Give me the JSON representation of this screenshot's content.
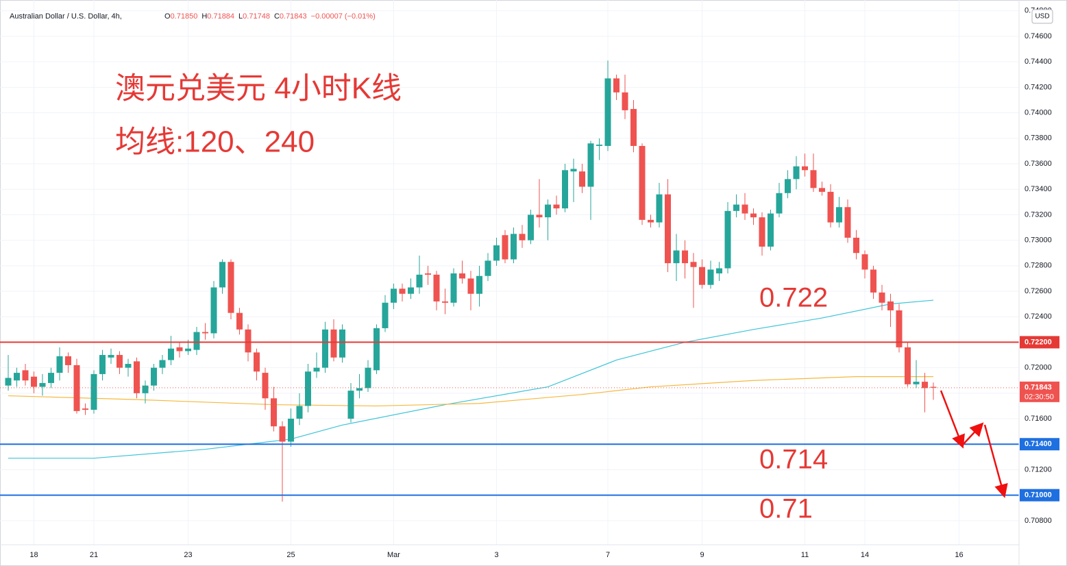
{
  "header": {
    "symbol": "Australian Dollar / U.S. Dollar, 4h,",
    "ohlc_keys": [
      "O",
      "H",
      "L",
      "C"
    ],
    "ohlc_values": [
      "0.71850",
      "0.71884",
      "0.71748",
      "0.71843"
    ],
    "change": "−0.00007 (−0.01%)",
    "currency": "USD",
    "countdown": "02:30:50"
  },
  "chart_data": {
    "type": "candlestick",
    "up_color": "#26a69a",
    "down_color": "#ef5350",
    "grid": true,
    "annotations": [
      "澳元兑美元 4小时K线",
      "均线:120、240",
      "0.722",
      "0.714",
      "0.71"
    ],
    "xlim": [
      -0.5,
      117.5
    ],
    "xticks": [
      {
        "value": 3,
        "label": "18"
      },
      {
        "value": 10,
        "label": "21"
      },
      {
        "value": 21,
        "label": "23"
      },
      {
        "value": 33,
        "label": "25"
      },
      {
        "value": 45,
        "label": "Mar"
      },
      {
        "value": 57,
        "label": "3"
      },
      {
        "value": 70,
        "label": "7"
      },
      {
        "value": 81,
        "label": "9"
      },
      {
        "value": 93,
        "label": "11"
      },
      {
        "value": 100,
        "label": "14"
      },
      {
        "value": 111,
        "label": "16"
      }
    ],
    "ylim": [
      0.70611,
      0.74842
    ],
    "yticks": [
      {
        "value": 0.708,
        "label": "0.70800"
      },
      {
        "value": 0.71,
        "label": "0.71000"
      },
      {
        "value": 0.712,
        "label": "0.71200"
      },
      {
        "value": 0.714,
        "label": "0.71400"
      },
      {
        "value": 0.716,
        "label": "0.71600"
      },
      {
        "value": 0.718,
        "label": "0.71800"
      },
      {
        "value": 0.72,
        "label": "0.72000"
      },
      {
        "value": 0.722,
        "label": "0.72200"
      },
      {
        "value": 0.724,
        "label": "0.72400"
      },
      {
        "value": 0.726,
        "label": "0.72600"
      },
      {
        "value": 0.728,
        "label": "0.72800"
      },
      {
        "value": 0.73,
        "label": "0.73000"
      },
      {
        "value": 0.732,
        "label": "0.73200"
      },
      {
        "value": 0.734,
        "label": "0.73400"
      },
      {
        "value": 0.736,
        "label": "0.73600"
      },
      {
        "value": 0.738,
        "label": "0.73800"
      },
      {
        "value": 0.74,
        "label": "0.74000"
      },
      {
        "value": 0.742,
        "label": "0.74200"
      },
      {
        "value": 0.744,
        "label": "0.74400"
      },
      {
        "value": 0.746,
        "label": "0.74600"
      },
      {
        "value": 0.748,
        "label": "0.74800"
      }
    ],
    "levels": [
      {
        "value": 0.722,
        "label": "0.72200",
        "color": "#e53935"
      },
      {
        "value": 0.714,
        "label": "0.71400",
        "color": "#1e6fe0"
      },
      {
        "value": 0.71,
        "label": "0.71000",
        "color": "#1e6fe0"
      }
    ],
    "last_price": {
      "value": 0.71843,
      "label": "0.71843",
      "color": "#ef5350"
    },
    "lines": [
      {
        "color": "#3cc4d8",
        "x": [
          0,
          10,
          23,
          33,
          39,
          51,
          63,
          71,
          79,
          87,
          95,
          103,
          108
        ],
        "values": [
          0.7129,
          0.7129,
          0.7136,
          0.7144,
          0.7155,
          0.7171,
          0.7185,
          0.7206,
          0.722,
          0.723,
          0.7239,
          0.725,
          0.7253
        ]
      },
      {
        "color": "#f5b83d",
        "x": [
          0,
          15,
          31,
          43,
          55,
          67,
          75,
          87,
          99,
          108
        ],
        "values": [
          0.7178,
          0.7175,
          0.7171,
          0.717,
          0.7172,
          0.7179,
          0.7185,
          0.719,
          0.7193,
          0.7193
        ]
      }
    ],
    "ohlc": [
      [
        0.7186,
        0.721,
        0.7182,
        0.7192
      ],
      [
        0.719,
        0.72,
        0.7185,
        0.7196
      ],
      [
        0.7198,
        0.7203,
        0.7186,
        0.719
      ],
      [
        0.7193,
        0.7197,
        0.718,
        0.7185
      ],
      [
        0.7185,
        0.7195,
        0.7178,
        0.7188
      ],
      [
        0.7188,
        0.72,
        0.7184,
        0.7196
      ],
      [
        0.7196,
        0.7216,
        0.719,
        0.7209
      ],
      [
        0.7209,
        0.7212,
        0.7196,
        0.7202
      ],
      [
        0.7202,
        0.7207,
        0.7164,
        0.7166
      ],
      [
        0.7168,
        0.7172,
        0.7163,
        0.7167
      ],
      [
        0.7167,
        0.7198,
        0.7164,
        0.7195
      ],
      [
        0.7195,
        0.7214,
        0.719,
        0.721
      ],
      [
        0.7208,
        0.7215,
        0.7203,
        0.721
      ],
      [
        0.721,
        0.7213,
        0.7195,
        0.72
      ],
      [
        0.72,
        0.7207,
        0.7193,
        0.7203
      ],
      [
        0.7205,
        0.7208,
        0.7176,
        0.718
      ],
      [
        0.718,
        0.719,
        0.7172,
        0.7186
      ],
      [
        0.7186,
        0.7203,
        0.7182,
        0.72
      ],
      [
        0.72,
        0.721,
        0.7195,
        0.7206
      ],
      [
        0.7206,
        0.7225,
        0.7202,
        0.7215
      ],
      [
        0.7216,
        0.722,
        0.7208,
        0.7213
      ],
      [
        0.7213,
        0.7222,
        0.721,
        0.7215
      ],
      [
        0.7214,
        0.7232,
        0.721,
        0.7228
      ],
      [
        0.7228,
        0.7235,
        0.7222,
        0.7227
      ],
      [
        0.7227,
        0.7268,
        0.7223,
        0.7263
      ],
      [
        0.7263,
        0.7285,
        0.7258,
        0.7283
      ],
      [
        0.7283,
        0.7285,
        0.7238,
        0.7243
      ],
      [
        0.7243,
        0.7247,
        0.7226,
        0.723
      ],
      [
        0.723,
        0.7234,
        0.7205,
        0.7212
      ],
      [
        0.7212,
        0.7215,
        0.719,
        0.7197
      ],
      [
        0.7196,
        0.72,
        0.7167,
        0.7176
      ],
      [
        0.7176,
        0.7185,
        0.715,
        0.7154
      ],
      [
        0.7154,
        0.7158,
        0.7095,
        0.7142
      ],
      [
        0.7142,
        0.7168,
        0.7138,
        0.716
      ],
      [
        0.716,
        0.718,
        0.7155,
        0.717
      ],
      [
        0.717,
        0.7203,
        0.7165,
        0.7197
      ],
      [
        0.7197,
        0.7212,
        0.7192,
        0.72
      ],
      [
        0.72,
        0.7236,
        0.7196,
        0.723
      ],
      [
        0.723,
        0.7238,
        0.7205,
        0.7208
      ],
      [
        0.7208,
        0.7234,
        0.7204,
        0.723
      ],
      [
        0.716,
        0.7188,
        0.7157,
        0.7182
      ],
      [
        0.7182,
        0.7195,
        0.7176,
        0.7184
      ],
      [
        0.7184,
        0.7206,
        0.7181,
        0.72
      ],
      [
        0.7198,
        0.7234,
        0.7195,
        0.7231
      ],
      [
        0.7231,
        0.7257,
        0.7228,
        0.7251
      ],
      [
        0.7251,
        0.7266,
        0.7246,
        0.7262
      ],
      [
        0.7262,
        0.7266,
        0.7252,
        0.7258
      ],
      [
        0.7258,
        0.727,
        0.7254,
        0.7263
      ],
      [
        0.7263,
        0.7288,
        0.7258,
        0.7273
      ],
      [
        0.7274,
        0.728,
        0.7265,
        0.7273
      ],
      [
        0.7273,
        0.7276,
        0.7245,
        0.7252
      ],
      [
        0.7252,
        0.7262,
        0.7242,
        0.7251
      ],
      [
        0.7251,
        0.7278,
        0.7248,
        0.7274
      ],
      [
        0.7274,
        0.7284,
        0.7266,
        0.727
      ],
      [
        0.727,
        0.7276,
        0.7245,
        0.7258
      ],
      [
        0.7258,
        0.728,
        0.7248,
        0.7272
      ],
      [
        0.7272,
        0.729,
        0.7268,
        0.7284
      ],
      [
        0.7284,
        0.7302,
        0.728,
        0.7296
      ],
      [
        0.7304,
        0.7308,
        0.7282,
        0.7285
      ],
      [
        0.7285,
        0.731,
        0.7282,
        0.7305
      ],
      [
        0.7305,
        0.7312,
        0.7294,
        0.73
      ],
      [
        0.73,
        0.7324,
        0.7297,
        0.732
      ],
      [
        0.732,
        0.7348,
        0.731,
        0.7318
      ],
      [
        0.7318,
        0.7332,
        0.73,
        0.7328
      ],
      [
        0.7328,
        0.7335,
        0.732,
        0.7325
      ],
      [
        0.7325,
        0.736,
        0.7322,
        0.7355
      ],
      [
        0.7354,
        0.7364,
        0.733,
        0.7356
      ],
      [
        0.7354,
        0.736,
        0.7337,
        0.7342
      ],
      [
        0.7342,
        0.7378,
        0.7316,
        0.7376
      ],
      [
        0.7374,
        0.738,
        0.7363,
        0.7375
      ],
      [
        0.7374,
        0.7441,
        0.737,
        0.7427
      ],
      [
        0.7427,
        0.743,
        0.741,
        0.7416
      ],
      [
        0.7416,
        0.743,
        0.7395,
        0.7402
      ],
      [
        0.7403,
        0.741,
        0.7369,
        0.7374
      ],
      [
        0.7374,
        0.7376,
        0.7312,
        0.7316
      ],
      [
        0.7316,
        0.732,
        0.731,
        0.7314
      ],
      [
        0.7314,
        0.7345,
        0.731,
        0.7336
      ],
      [
        0.7336,
        0.7348,
        0.7275,
        0.7282
      ],
      [
        0.7282,
        0.7305,
        0.7268,
        0.7292
      ],
      [
        0.7292,
        0.73,
        0.727,
        0.7282
      ],
      [
        0.7283,
        0.729,
        0.7247,
        0.7279
      ],
      [
        0.7279,
        0.7285,
        0.7262,
        0.7265
      ],
      [
        0.7265,
        0.7284,
        0.7262,
        0.7277
      ],
      [
        0.7274,
        0.7283,
        0.7268,
        0.7278
      ],
      [
        0.7278,
        0.733,
        0.7274,
        0.7323
      ],
      [
        0.7323,
        0.7336,
        0.7318,
        0.7328
      ],
      [
        0.7328,
        0.7337,
        0.7316,
        0.7321
      ],
      [
        0.7321,
        0.7325,
        0.7312,
        0.7318
      ],
      [
        0.7318,
        0.7322,
        0.7288,
        0.7295
      ],
      [
        0.7295,
        0.7324,
        0.7292,
        0.7321
      ],
      [
        0.7321,
        0.7345,
        0.7318,
        0.7337
      ],
      [
        0.7337,
        0.7355,
        0.7333,
        0.7348
      ],
      [
        0.7348,
        0.7366,
        0.734,
        0.7358
      ],
      [
        0.7358,
        0.7368,
        0.735,
        0.7355
      ],
      [
        0.7355,
        0.7368,
        0.7338,
        0.7341
      ],
      [
        0.7341,
        0.7346,
        0.7335,
        0.7338
      ],
      [
        0.7338,
        0.7344,
        0.731,
        0.7314
      ],
      [
        0.7314,
        0.7334,
        0.731,
        0.7326
      ],
      [
        0.7326,
        0.7332,
        0.7298,
        0.7302
      ],
      [
        0.7302,
        0.7308,
        0.7285,
        0.729
      ],
      [
        0.7289,
        0.7292,
        0.727,
        0.7277
      ],
      [
        0.7277,
        0.728,
        0.7254,
        0.7259
      ],
      [
        0.7259,
        0.7265,
        0.7245,
        0.7251
      ],
      [
        0.7252,
        0.7258,
        0.7232,
        0.7245
      ],
      [
        0.7245,
        0.725,
        0.7212,
        0.7216
      ],
      [
        0.7216,
        0.722,
        0.7185,
        0.7187
      ],
      [
        0.7187,
        0.7206,
        0.7184,
        0.7189
      ],
      [
        0.7189,
        0.7196,
        0.7165,
        0.7184
      ],
      [
        0.7185,
        0.71884,
        0.71748,
        0.71843
      ]
    ]
  }
}
